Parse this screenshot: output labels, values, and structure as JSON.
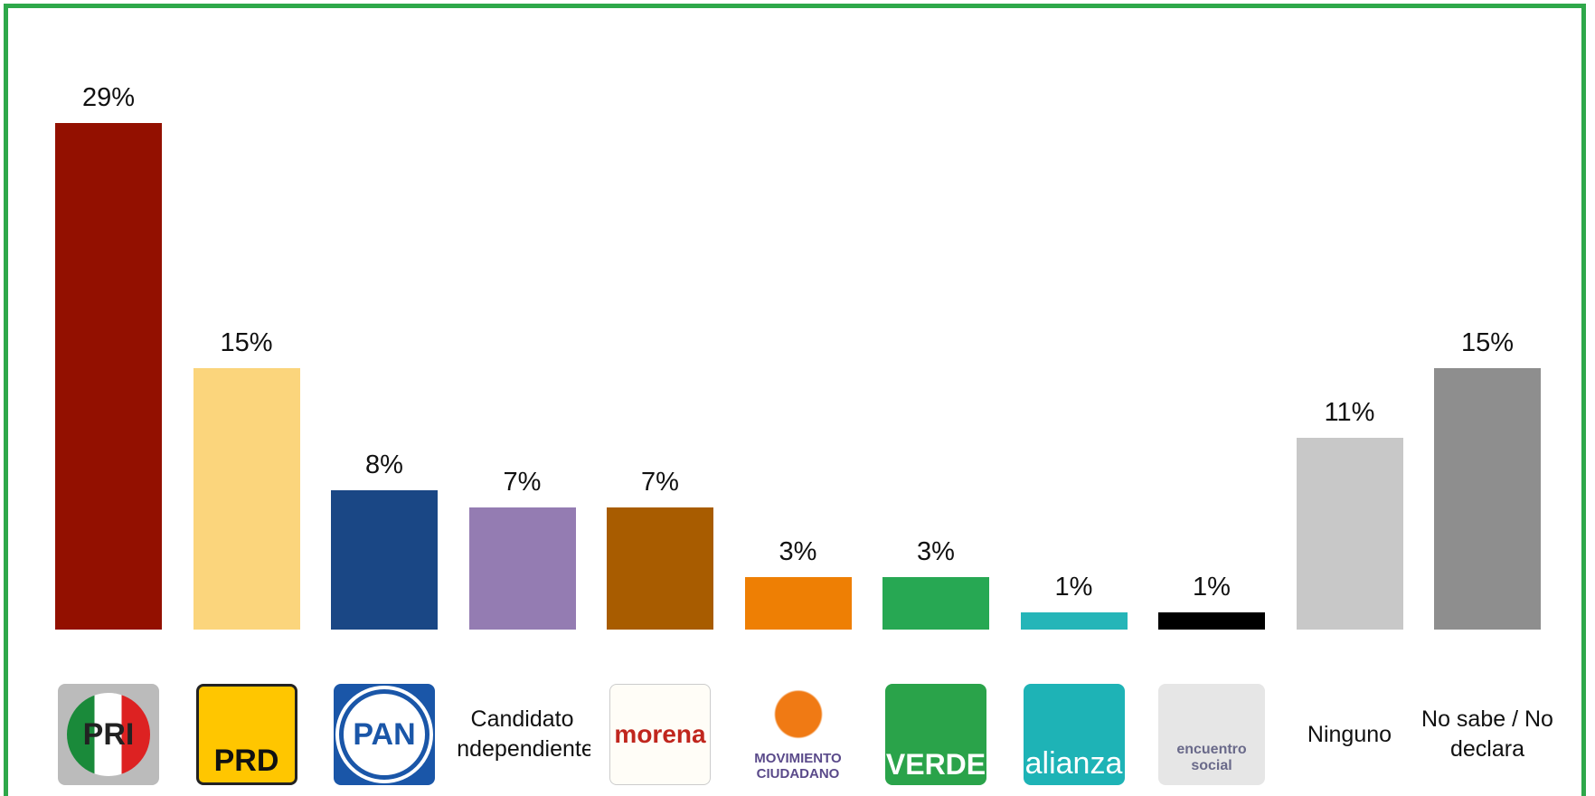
{
  "chart_data": {
    "type": "bar",
    "categories": [
      "PRI",
      "PRD",
      "PAN",
      "Candidato Independiente",
      "morena",
      "MOVIMIENTO CIUDADANO",
      "VERDE",
      "alianza",
      "encuentro social",
      "Ninguno",
      "No sabe / No declara"
    ],
    "values": [
      29,
      15,
      8,
      7,
      7,
      3,
      3,
      1,
      1,
      11,
      15
    ],
    "value_labels": [
      "29%",
      "15%",
      "8%",
      "7%",
      "7%",
      "3%",
      "3%",
      "1%",
      "1%",
      "11%",
      "15%"
    ],
    "colors": [
      "#931000",
      "#fbd57c",
      "#1a4785",
      "#947cb2",
      "#a85c00",
      "#ee7f04",
      "#27a853",
      "#25b5b8",
      "#000000",
      "#c8c8c8",
      "#8e8e8e"
    ]
  }
}
